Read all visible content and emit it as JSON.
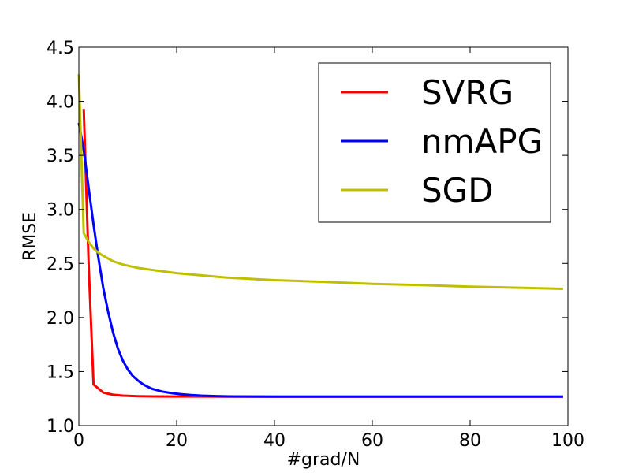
{
  "chart_data": {
    "type": "line",
    "title": "",
    "xlabel": "#grad/N",
    "ylabel": "RMSE",
    "xlim": [
      0,
      100
    ],
    "ylim": [
      1.0,
      4.5
    ],
    "xticks": [
      0,
      20,
      40,
      60,
      80,
      100
    ],
    "yticks": [
      1.0,
      1.5,
      2.0,
      2.5,
      3.0,
      3.5,
      4.0,
      4.5
    ],
    "xtick_labels": [
      "0",
      "20",
      "40",
      "60",
      "80",
      "100"
    ],
    "ytick_labels": [
      "1.0",
      "1.5",
      "2.0",
      "2.5",
      "3.0",
      "3.5",
      "4.0",
      "4.5"
    ],
    "grid": false,
    "legend_position": "top-right",
    "series": [
      {
        "name": "SVRG",
        "color": "#ff0000",
        "x": [
          1,
          2,
          3,
          5,
          7,
          9,
          12,
          15,
          20,
          30,
          40,
          60,
          80,
          99
        ],
        "y": [
          3.93,
          2.5,
          1.38,
          1.305,
          1.285,
          1.277,
          1.272,
          1.27,
          1.269,
          1.268,
          1.268,
          1.268,
          1.268,
          1.268
        ]
      },
      {
        "name": "nmAPG",
        "color": "#0000ff",
        "x": [
          0,
          1,
          2,
          3,
          4,
          5,
          6,
          7,
          8,
          9,
          10,
          11,
          12,
          13,
          14,
          15,
          17,
          19,
          21,
          23,
          25,
          28,
          31,
          35,
          40,
          50,
          60,
          80,
          99
        ],
        "y": [
          3.8,
          3.55,
          3.2,
          2.86,
          2.55,
          2.27,
          2.05,
          1.86,
          1.71,
          1.6,
          1.52,
          1.46,
          1.42,
          1.385,
          1.36,
          1.34,
          1.315,
          1.3,
          1.29,
          1.282,
          1.277,
          1.273,
          1.27,
          1.269,
          1.268,
          1.268,
          1.268,
          1.268,
          1.268
        ]
      },
      {
        "name": "SGD",
        "color": "#bfbf00",
        "x": [
          0,
          1,
          2,
          3,
          4,
          5,
          7,
          9,
          12,
          15,
          20,
          25,
          30,
          40,
          50,
          60,
          70,
          80,
          90,
          99
        ],
        "y": [
          4.25,
          2.78,
          2.7,
          2.64,
          2.6,
          2.57,
          2.52,
          2.49,
          2.46,
          2.44,
          2.41,
          2.39,
          2.37,
          2.345,
          2.33,
          2.31,
          2.3,
          2.285,
          2.275,
          2.265
        ]
      }
    ]
  }
}
